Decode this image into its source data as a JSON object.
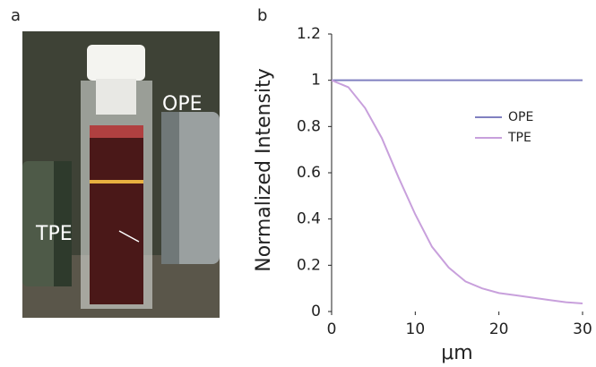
{
  "panel_labels": [
    "a",
    "b"
  ],
  "photo": {
    "labels": [
      "TPE",
      "OPE"
    ]
  },
  "chart_data": {
    "type": "line",
    "x_label": "μm",
    "y_label": "Normalized Intensity",
    "x": [
      0,
      2,
      4,
      6,
      8,
      10,
      12,
      14,
      16,
      18,
      20,
      22,
      24,
      26,
      28,
      30
    ],
    "series": [
      {
        "name": "OPE",
        "color": "#8080c0",
        "values": [
          1,
          1,
          1,
          1,
          1,
          1,
          1,
          1,
          1,
          1,
          1,
          1,
          1,
          1,
          1,
          1
        ]
      },
      {
        "name": "TPE",
        "color": "#c8a0dc",
        "values": [
          1,
          0.97,
          0.88,
          0.75,
          0.58,
          0.42,
          0.28,
          0.19,
          0.13,
          0.1,
          0.08,
          0.07,
          0.06,
          0.05,
          0.04,
          0.035
        ]
      }
    ],
    "xlim": [
      0,
      30
    ],
    "xticks": [
      0,
      10,
      20,
      30
    ],
    "ylim": [
      0,
      1.2
    ],
    "yticks": [
      0,
      0.2,
      0.4,
      0.6,
      0.8,
      1,
      1.2
    ],
    "grid": false
  }
}
